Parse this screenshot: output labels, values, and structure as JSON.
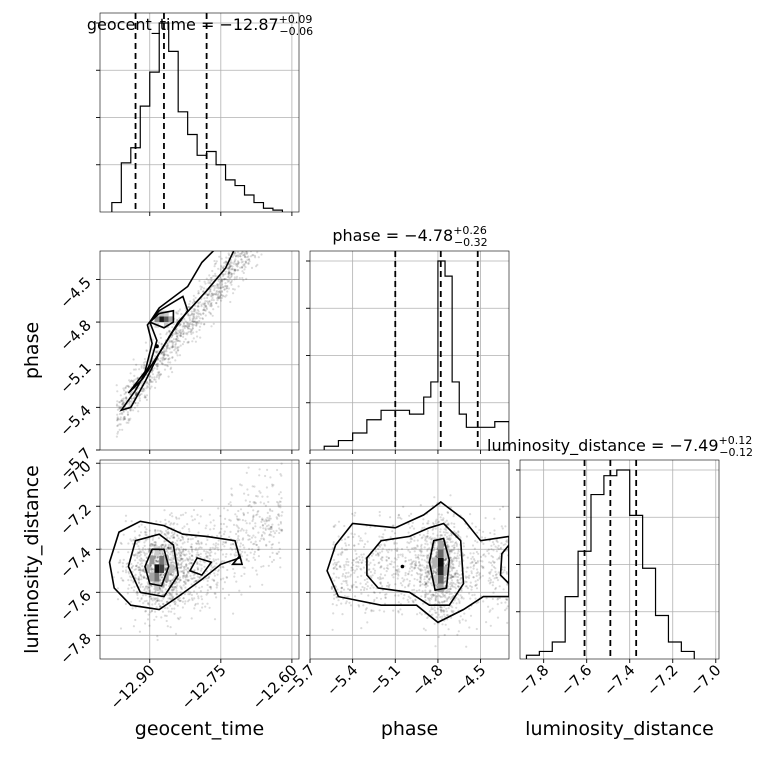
{
  "chart_data": {
    "type": "corner",
    "parameters": [
      "geocent_time",
      "phase",
      "luminosity_distance"
    ],
    "axis_labels": {
      "geocent_time": "geocent_time",
      "phase": "phase",
      "luminosity_distance": "luminosity_distance"
    },
    "ranges": {
      "geocent_time": [
        -13.005,
        -12.585
      ],
      "phase": [
        -5.7,
        -4.3
      ],
      "luminosity_distance": [
        -7.91,
        -6.985
      ]
    },
    "ticks": {
      "geocent_time": [
        -12.9,
        -12.75,
        -12.6
      ],
      "phase": [
        -5.7,
        -5.4,
        -5.1,
        -4.8,
        -4.5
      ],
      "luminosity_distance": [
        -7.8,
        -7.6,
        -7.4,
        -7.2,
        -7.0
      ]
    },
    "tick_labels": {
      "geocent_time": [
        "−12.90",
        "−12.75",
        "−12.60"
      ],
      "phase": [
        "−5.7",
        "−5.4",
        "−5.1",
        "−4.8",
        "−4.5"
      ],
      "luminosity_distance": [
        "−7.8",
        "−7.6",
        "−7.4",
        "−7.2",
        "−7.0"
      ]
    },
    "phase_row_ticks": [
      "−4.5",
      "−4.8",
      "−5.1",
      "−5.4",
      "−5.7"
    ],
    "distance_row_ticks": [
      "−7.0",
      "−7.2",
      "−7.4",
      "−7.6",
      "−7.8"
    ],
    "grid": true,
    "titles": [
      {
        "param": "geocent_time",
        "text": "geocent_time = −12.87",
        "sup": "+0.09",
        "sub": "−0.06"
      },
      {
        "param": "phase",
        "text": "phase = −4.78",
        "sup": "+0.26",
        "sub": "−0.32"
      },
      {
        "param": "luminosity_distance",
        "text": "luminosity_distance = −7.49",
        "sup": "+0.12",
        "sub": "−0.12"
      }
    ],
    "quantiles": {
      "geocent_time": [
        -12.93,
        -12.87,
        -12.78
      ],
      "phase": [
        -5.1,
        -4.78,
        -4.52
      ],
      "luminosity_distance": [
        -7.61,
        -7.49,
        -7.37
      ]
    },
    "histograms": {
      "geocent_time": {
        "bin_edges": [
          -12.98,
          -12.96,
          -12.94,
          -12.92,
          -12.9,
          -12.88,
          -12.86,
          -12.84,
          -12.82,
          -12.8,
          -12.78,
          -12.76,
          -12.74,
          -12.72,
          -12.7,
          -12.68,
          -12.66,
          -12.64,
          -12.62
        ],
        "counts": [
          0.05,
          0.26,
          0.34,
          0.56,
          0.74,
          1.0,
          0.85,
          0.53,
          0.41,
          0.3,
          0.32,
          0.25,
          0.17,
          0.14,
          0.09,
          0.05,
          0.02,
          0.01
        ]
      },
      "phase": {
        "bin_edges": [
          -5.6,
          -5.5,
          -5.4,
          -5.3,
          -5.2,
          -5.1,
          -5.0,
          -4.9,
          -4.85,
          -4.8,
          -4.75,
          -4.7,
          -4.65,
          -4.6,
          -4.5,
          -4.4,
          -4.3
        ],
        "counts": [
          0.02,
          0.05,
          0.09,
          0.16,
          0.21,
          0.21,
          0.19,
          0.28,
          0.36,
          1.0,
          0.92,
          0.36,
          0.19,
          0.12,
          0.12,
          0.15
        ]
      },
      "luminosity_distance": {
        "bin_edges": [
          -7.88,
          -7.82,
          -7.76,
          -7.7,
          -7.64,
          -7.58,
          -7.52,
          -7.46,
          -7.4,
          -7.34,
          -7.28,
          -7.22,
          -7.16,
          -7.1
        ],
        "counts": [
          0.02,
          0.04,
          0.09,
          0.33,
          0.57,
          0.87,
          0.97,
          1.0,
          0.76,
          0.48,
          0.23,
          0.09,
          0.04
        ]
      }
    }
  }
}
